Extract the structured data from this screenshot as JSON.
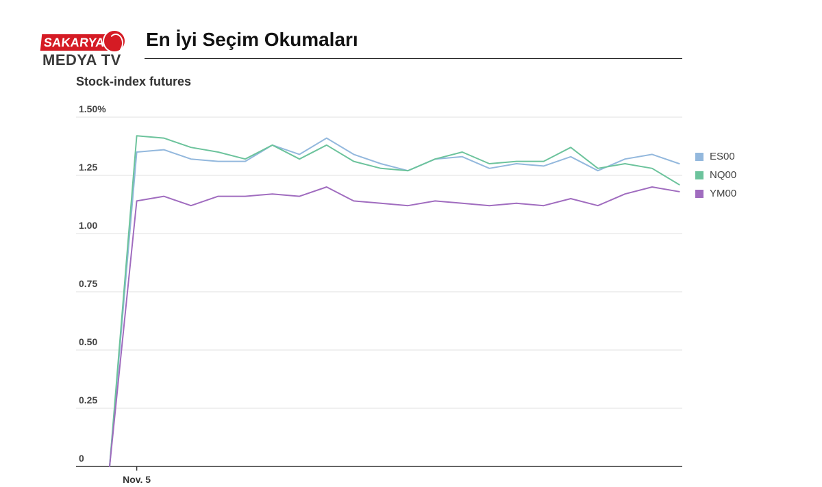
{
  "logo": {
    "top_text": "SAKARYA",
    "bottom_text": "MEDYA TV",
    "color": "#d51b24"
  },
  "header": {
    "title": "En İyi Seçim Okumaları"
  },
  "chart_data": {
    "type": "line",
    "title": "Stock-index futures",
    "ylim": [
      0,
      1.5
    ],
    "y_ticks": [
      {
        "value": 0,
        "label": "0"
      },
      {
        "value": 0.25,
        "label": "0.25"
      },
      {
        "value": 0.5,
        "label": "0.50"
      },
      {
        "value": 0.75,
        "label": "0.75"
      },
      {
        "value": 1.0,
        "label": "1.00"
      },
      {
        "value": 1.25,
        "label": "1.25"
      },
      {
        "value": 1.5,
        "label": "1.50%"
      }
    ],
    "x_ticks": [
      {
        "index": 1,
        "label": "Nov. 5"
      }
    ],
    "grid": true,
    "legend_placement": "right",
    "series": [
      {
        "name": "ES00",
        "color": "#93b8dd",
        "values": [
          0,
          1.35,
          1.36,
          1.32,
          1.31,
          1.31,
          1.38,
          1.34,
          1.41,
          1.34,
          1.3,
          1.27,
          1.32,
          1.33,
          1.28,
          1.3,
          1.29,
          1.33,
          1.27,
          1.32,
          1.34,
          1.3
        ]
      },
      {
        "name": "NQ00",
        "color": "#6cc39c",
        "values": [
          0,
          1.42,
          1.41,
          1.37,
          1.35,
          1.32,
          1.38,
          1.32,
          1.38,
          1.31,
          1.28,
          1.27,
          1.32,
          1.35,
          1.3,
          1.31,
          1.31,
          1.37,
          1.28,
          1.3,
          1.28,
          1.21
        ]
      },
      {
        "name": "YM00",
        "color": "#a06cbf",
        "values": [
          0,
          1.14,
          1.16,
          1.12,
          1.16,
          1.16,
          1.17,
          1.16,
          1.2,
          1.14,
          1.13,
          1.12,
          1.14,
          1.13,
          1.12,
          1.13,
          1.12,
          1.15,
          1.12,
          1.17,
          1.2,
          1.18
        ]
      }
    ]
  }
}
